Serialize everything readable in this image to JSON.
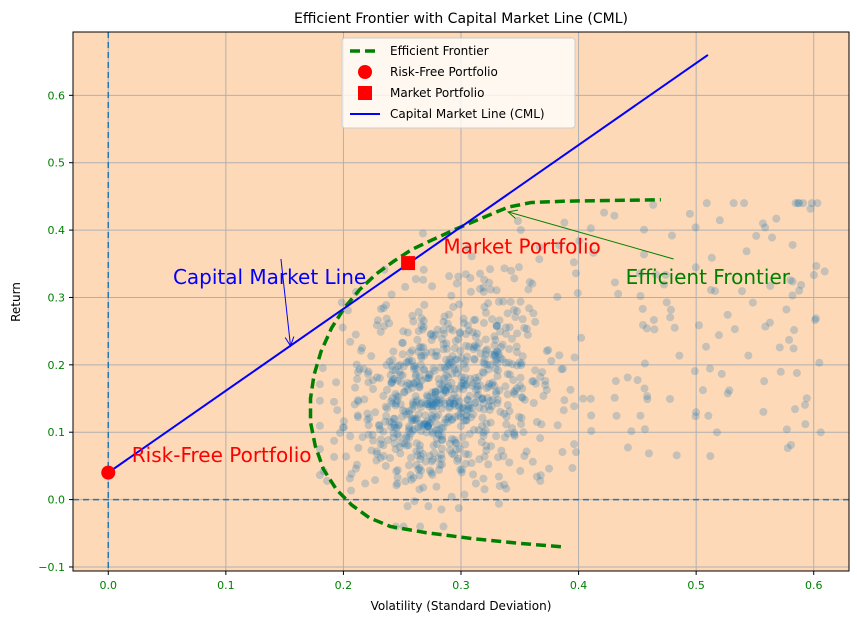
{
  "chart_data": {
    "type": "scatter",
    "title": "Efficient Frontier with Capital Market Line (CML)",
    "xlabel": "Volatility (Standard Deviation)",
    "ylabel": "Return",
    "xlim": [
      -0.03,
      0.63
    ],
    "ylim": [
      -0.106,
      0.694
    ],
    "xticks": [
      0.0,
      0.1,
      0.2,
      0.3,
      0.4,
      0.5,
      0.6
    ],
    "yticks": [
      -0.1,
      0.0,
      0.1,
      0.2,
      0.3,
      0.4,
      0.5,
      0.6
    ],
    "xtick_labels": [
      "0.0",
      "0.1",
      "0.2",
      "0.3",
      "0.4",
      "0.5",
      "0.6"
    ],
    "ytick_labels": [
      "−0.1",
      "0.0",
      "0.1",
      "0.2",
      "0.3",
      "0.4",
      "0.5",
      "0.6"
    ],
    "grid": true,
    "legend_position": "top-center",
    "colors": {
      "background": "#fed9b7",
      "frontier": "#008000",
      "cml": "#0000ff",
      "risk_free": "#ff0000",
      "market": "#ff0000",
      "scatter": "#1f77b4",
      "reference_lines": "#1f77b4",
      "tick_labels": "#008000",
      "grid": "#b0b0b0"
    },
    "legend": [
      {
        "label": "Efficient Frontier",
        "kind": "dashed-line",
        "color": "#008000"
      },
      {
        "label": "Risk-Free Portfolio",
        "kind": "circle",
        "color": "#ff0000"
      },
      {
        "label": "Market Portfolio",
        "kind": "square",
        "color": "#ff0000"
      },
      {
        "label": "Capital Market Line (CML)",
        "kind": "line",
        "color": "#0000ff"
      }
    ],
    "risk_free_portfolio": {
      "volatility": 0.0,
      "return": 0.04
    },
    "market_portfolio": {
      "volatility": 0.255,
      "return": 0.351
    },
    "capital_market_line": {
      "x": [
        0.0,
        0.51
      ],
      "y": [
        0.04,
        0.66
      ]
    },
    "efficient_frontier": {
      "x": [
        0.385,
        0.35,
        0.31,
        0.27,
        0.24,
        0.222,
        0.207,
        0.194,
        0.183,
        0.176,
        0.172,
        0.172,
        0.175,
        0.181,
        0.19,
        0.201,
        0.214,
        0.228,
        0.243,
        0.258,
        0.275,
        0.295,
        0.318,
        0.34,
        0.36,
        0.39,
        0.43,
        0.47
      ],
      "y": [
        -0.07,
        -0.065,
        -0.058,
        -0.049,
        -0.04,
        -0.027,
        -0.008,
        0.015,
        0.045,
        0.08,
        0.115,
        0.15,
        0.185,
        0.22,
        0.255,
        0.285,
        0.312,
        0.335,
        0.354,
        0.371,
        0.385,
        0.401,
        0.418,
        0.434,
        0.441,
        0.443,
        0.444,
        0.445
      ]
    },
    "reference_lines": {
      "vertical_x": 0.0,
      "horizontal_y": 0.0
    },
    "annotations": [
      {
        "text": "Capital Market Line",
        "color": "#0000ff",
        "x": 0.055,
        "y": 0.32,
        "arrow_to": [
          0.155,
          0.228
        ]
      },
      {
        "text": "Efficient Frontier",
        "color": "#008000",
        "x": 0.44,
        "y": 0.32,
        "arrow_to": [
          0.34,
          0.427
        ]
      },
      {
        "text": "Market Portfolio",
        "color": "#ff0000",
        "x": 0.285,
        "y": 0.365
      },
      {
        "text": "Risk-Free Portfolio",
        "color": "#ff0000",
        "x": 0.02,
        "y": 0.056
      }
    ],
    "random_portfolios": {
      "count": 900,
      "seed": 7,
      "volatility_range": [
        0.18,
        0.61
      ],
      "return_range": [
        -0.04,
        0.44
      ],
      "alpha": 0.25
    }
  }
}
